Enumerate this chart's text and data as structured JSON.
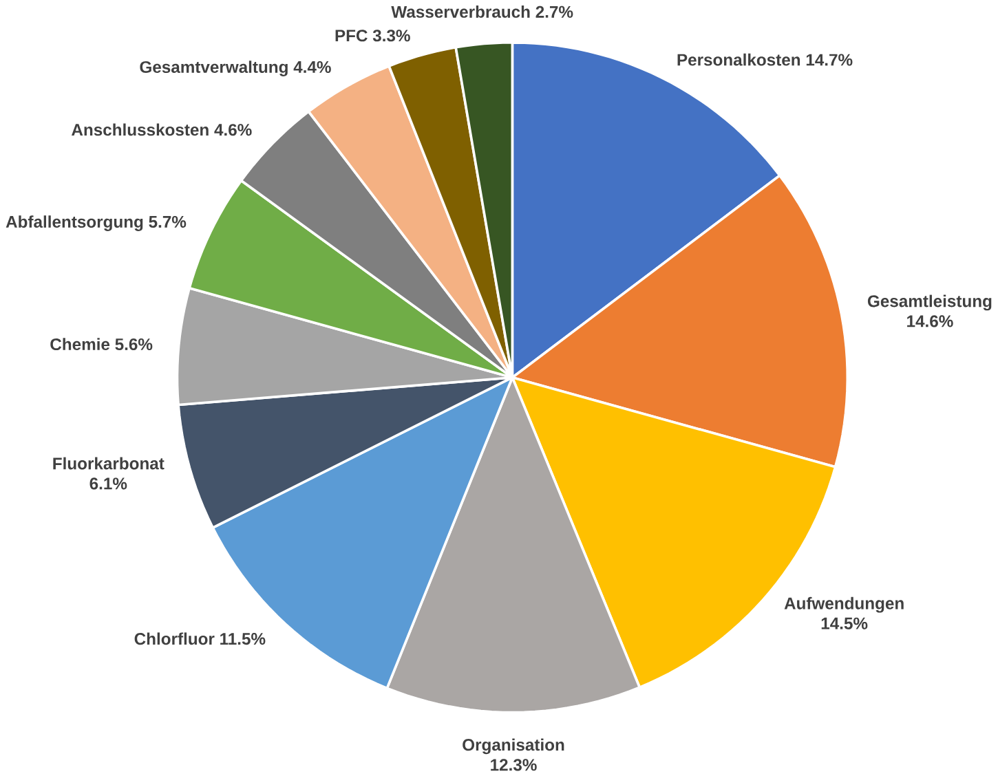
{
  "chart_data": {
    "type": "pie",
    "categories": [
      "Personalkosten",
      "Gesamtleistung",
      "Aufwendungen",
      "Organisation",
      "Chlorfluor",
      "Fluorkarbonat",
      "Chemie",
      "Abfallentsorgung",
      "Anschlusskosten",
      "Gesamtverwaltung",
      "PFC",
      "Wasserverbrauch"
    ],
    "values": [
      14.7,
      14.6,
      14.5,
      12.3,
      11.5,
      6.1,
      5.6,
      5.7,
      4.6,
      4.4,
      3.3,
      2.7
    ],
    "value_labels": [
      "14.7%",
      "14.6%",
      "14.5%",
      "12.3%",
      "11.5%",
      "6.1%",
      "5.6%",
      "5.7%",
      "4.6%",
      "4.4%",
      "3.3%",
      "2.7%"
    ],
    "colors": [
      "#4472c4",
      "#ed7d31",
      "#ffc000",
      "#aaa6a4",
      "#5b9bd5",
      "#44546a",
      "#a5a5a5",
      "#70ad47",
      "#7f7f7f",
      "#f4b183",
      "#7f6000",
      "#375623"
    ]
  }
}
